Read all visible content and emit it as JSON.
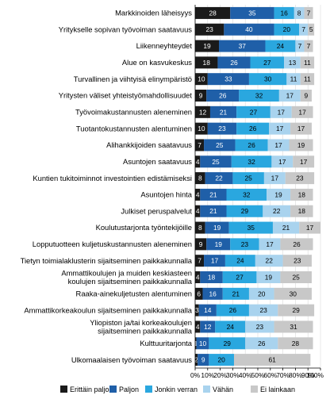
{
  "chart_data": {
    "type": "bar",
    "orientation": "horizontal",
    "stacked": true,
    "categories": [
      [
        "Markkinoiden läheisyys"
      ],
      [
        "Yritykselle sopivan työvoiman saatavuus"
      ],
      [
        "Liikenneyhteydet"
      ],
      [
        "Alue on kasvukeskus"
      ],
      [
        "Turvallinen ja viihtyisä elinympäristö"
      ],
      [
        "Yritysten väliset yhteistyömahdollisuudet"
      ],
      [
        "Työvoimakustannusten aleneminen"
      ],
      [
        "Tuotantokustannusten alentuminen"
      ],
      [
        "Alihankkijoiden saatavuus"
      ],
      [
        "Asuntojen saatavuus"
      ],
      [
        "Kuntien tukitoiminnot investointien edistämiseksi"
      ],
      [
        "Asuntojen hinta"
      ],
      [
        "Julkiset peruspalvelut"
      ],
      [
        "Koulutustarjonta työntekijöille"
      ],
      [
        "Lopputuotteen kuljetuskustannusten aleneminen"
      ],
      [
        "Tietyn toimialaklusterin sijaitseminen paikkakunnalla"
      ],
      [
        "Ammattikoulujen ja muiden keskiasteen",
        "koulujen sijaitseminen paikkakunnalla"
      ],
      [
        "Raaka-ainekuljetusten alentuminen"
      ],
      [
        "Ammattikorkeakoulun sijaitseminen paikkakunnalla"
      ],
      [
        "Yliopiston ja/tai korkeakoulujen",
        "sijaitseminen paikkakunnalla"
      ],
      [
        "Kulttuuritarjonta"
      ],
      [
        "Ulkomaalaisen työvoiman saatavuus"
      ]
    ],
    "series": [
      {
        "name": "Erittäin paljon",
        "color": "#1a1a1a",
        "label_color": "#ffffff",
        "values": [
          28,
          23,
          19,
          18,
          10,
          9,
          12,
          10,
          7,
          4,
          8,
          4,
          4,
          8,
          9,
          7,
          4,
          6,
          3,
          4,
          1,
          2
        ]
      },
      {
        "name": "Paljon",
        "color": "#1f5fa8",
        "label_color": "#ffffff",
        "values": [
          35,
          40,
          37,
          26,
          33,
          26,
          21,
          23,
          25,
          25,
          22,
          21,
          21,
          19,
          19,
          17,
          18,
          16,
          14,
          12,
          10,
          9
        ]
      },
      {
        "name": "Jonkin verran",
        "color": "#2aa7df",
        "label_color": "#000000",
        "values": [
          16,
          20,
          24,
          27,
          30,
          32,
          27,
          26,
          26,
          32,
          25,
          32,
          29,
          35,
          23,
          24,
          27,
          21,
          26,
          24,
          29,
          20
        ]
      },
      {
        "name": "Vähän",
        "color": "#a9d3ee",
        "label_color": "#000000",
        "values": [
          8,
          7,
          7,
          13,
          11,
          17,
          17,
          17,
          17,
          17,
          17,
          19,
          22,
          21,
          17,
          22,
          19,
          20,
          23,
          23,
          26,
          null
        ]
      },
      {
        "name": "Ei lainkaan",
        "color": "#c8c8c8",
        "label_color": "#000000",
        "values": [
          7,
          5,
          7,
          11,
          11,
          9,
          17,
          17,
          19,
          17,
          23,
          18,
          18,
          17,
          26,
          23,
          25,
          30,
          29,
          31,
          28,
          61
        ]
      }
    ],
    "xlim": [
      0,
      100
    ],
    "x_ticks": [
      "0%",
      "10%",
      "20%",
      "30%",
      "40%",
      "50%",
      "60%",
      "70%",
      "80%",
      "90%",
      "100%"
    ],
    "grid": true,
    "legend_position": "bottom"
  }
}
